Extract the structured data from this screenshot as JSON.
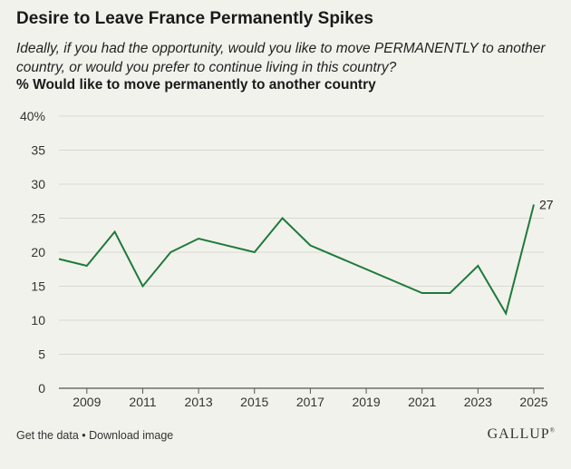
{
  "chart_data": {
    "type": "line",
    "title": "Desire to Leave France Permanently Spikes",
    "subtitle": "Ideally, if you had the opportunity, would you like to move PERMANENTLY to another country, or would you prefer to continue living in this country?",
    "ylabel": "% Would like to move permanently to another country",
    "xlabel": "",
    "ylim": [
      0,
      40
    ],
    "yticks": [
      "0",
      "5",
      "10",
      "15",
      "20",
      "25",
      "30",
      "35",
      "40%"
    ],
    "yticks_values": [
      0,
      5,
      10,
      15,
      20,
      25,
      30,
      35,
      40
    ],
    "xlim": [
      2008,
      2025
    ],
    "xticks": [
      2009,
      2011,
      2013,
      2015,
      2017,
      2019,
      2021,
      2023,
      2025
    ],
    "grid": true,
    "line_color": "#1e7a3c",
    "series": [
      {
        "name": "% Would like to move permanently to another country",
        "x": [
          2008,
          2009,
          2010,
          2011,
          2012,
          2013,
          2015,
          2016,
          2017,
          2021,
          2022,
          2023,
          2024,
          2025
        ],
        "values": [
          19,
          18,
          23,
          15,
          20,
          22,
          20,
          25,
          21,
          14,
          14,
          18,
          11,
          27
        ]
      }
    ],
    "annotations": [
      {
        "x": 2025,
        "y": 27,
        "text": "27"
      }
    ]
  },
  "footer": {
    "get_data": "Get the data",
    "separator": " • ",
    "download": "Download image",
    "brand": "GALLUP",
    "brand_mark": "®"
  }
}
